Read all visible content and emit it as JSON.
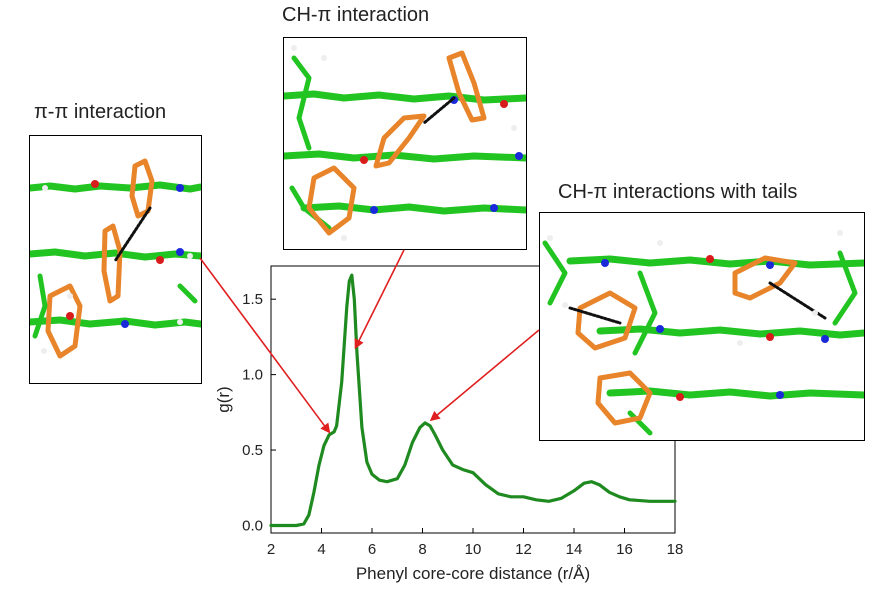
{
  "chart_data": {
    "type": "line",
    "xlabel": "Phenyl core-core distance (r/Å)",
    "ylabel": "g(r)",
    "xlim": [
      2,
      18
    ],
    "ylim": [
      -0.05,
      1.72
    ],
    "xticks": [
      "2",
      "4",
      "6",
      "8",
      "10",
      "12",
      "14",
      "16",
      "18"
    ],
    "yticks": [
      "0.0",
      "0.5",
      "1.0",
      "1.5"
    ],
    "grid": false,
    "series": [
      {
        "color": "#1f8a1f",
        "x": [
          2.0,
          3.0,
          3.3,
          3.5,
          3.7,
          3.9,
          4.1,
          4.3,
          4.5,
          4.6,
          4.8,
          5.0,
          5.1,
          5.2,
          5.3,
          5.4,
          5.6,
          5.8,
          6.0,
          6.3,
          6.6,
          7.0,
          7.3,
          7.6,
          7.9,
          8.1,
          8.3,
          8.5,
          8.8,
          9.2,
          9.6,
          10.0,
          10.5,
          11.0,
          11.5,
          12.0,
          12.5,
          13.0,
          13.5,
          14.0,
          14.4,
          14.7,
          15.0,
          15.4,
          15.8,
          16.2,
          17.0,
          18.0
        ],
        "y": [
          0.0,
          0.0,
          0.01,
          0.07,
          0.22,
          0.4,
          0.53,
          0.6,
          0.62,
          0.66,
          0.95,
          1.45,
          1.62,
          1.66,
          1.5,
          1.15,
          0.65,
          0.42,
          0.34,
          0.3,
          0.29,
          0.31,
          0.4,
          0.55,
          0.65,
          0.68,
          0.66,
          0.6,
          0.5,
          0.4,
          0.37,
          0.35,
          0.27,
          0.21,
          0.19,
          0.19,
          0.17,
          0.16,
          0.18,
          0.23,
          0.28,
          0.29,
          0.27,
          0.22,
          0.19,
          0.17,
          0.16,
          0.16
        ]
      }
    ],
    "annotations": [
      {
        "text": "π-π interaction",
        "x": 4.3,
        "y": 0.62
      },
      {
        "text": "CH-π interaction",
        "x": 5.35,
        "y": 1.18
      },
      {
        "text": "CH-π interactions with tails",
        "x": 8.35,
        "y": 0.7
      }
    ],
    "arrow_color": "#e02020"
  },
  "insets": {
    "pi_pi": {
      "title": "π-π interaction"
    },
    "ch_pi": {
      "title": "CH-π interaction"
    },
    "ch_pi_tails": {
      "title": "CH-π interactions with tails"
    }
  }
}
